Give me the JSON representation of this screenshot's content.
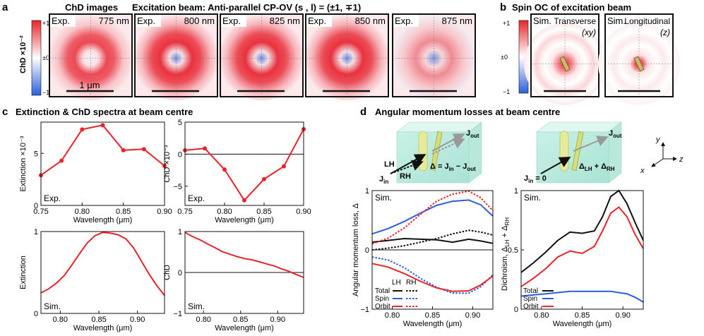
{
  "panel_a": {
    "letter": "a",
    "title_left": "ChD images",
    "title_right": "Excitation beam: Anti-parallel CP-OV (s , l) = (±1, ∓1)",
    "colorbar": {
      "label": "ChD ×10⁻²",
      "ticks": [
        "+1",
        "±0",
        "−1"
      ]
    },
    "images": [
      {
        "tag": "Exp.",
        "wavelength": "775 nm"
      },
      {
        "tag": "Exp.",
        "wavelength": "800 nm"
      },
      {
        "tag": "Exp.",
        "wavelength": "825 nm"
      },
      {
        "tag": "Exp.",
        "wavelength": "850 nm"
      },
      {
        "tag": "Exp.",
        "wavelength": "875 nm"
      }
    ],
    "scalebar_label": "1 μm"
  },
  "panel_b": {
    "letter": "b",
    "title": "Spin OC of excitation beam",
    "colorbar_ticks": [
      "+1",
      "±0",
      "−1"
    ],
    "images": [
      {
        "tag": "Sim.",
        "name": "Transverse",
        "axis": "(xy)"
      },
      {
        "tag": "Sim.",
        "name": "Longitudinal",
        "axis": "(z)"
      }
    ]
  },
  "panel_c": {
    "letter": "c",
    "title": "Extinction & ChD spectra at beam centre",
    "xlabel": "Wavelength (μm)",
    "tag_exp": "Exp.",
    "tag_sim": "Sim."
  },
  "panel_d": {
    "letter": "d",
    "title": "Angular momentum losses at beam centre",
    "diagram_left": {
      "lh": "LH",
      "rh": "RH",
      "jin": "J",
      "jin_sub": "in",
      "jout": "J",
      "jout_sub": "out",
      "eq": "Δ = J",
      "eq_sub1": "in",
      "eq_mid": " − J",
      "eq_sub2": "out"
    },
    "diagram_right": {
      "jin": "J",
      "jin_sub": "in",
      "jin_val": " = 0",
      "jout": "J",
      "jout_sub": "out",
      "eq": "Δ",
      "eq_sub1": "LH",
      "eq_mid": " + Δ",
      "eq_sub2": "RH"
    },
    "axes_labels": {
      "x": "x",
      "y": "y",
      "z": "z"
    },
    "left_ylabel": "Angular momentum loss, Δ",
    "right_ylabel": "Dichroism, Δ",
    "right_ylabel_sub1": "LH",
    "right_ylabel_mid": " + Δ",
    "right_ylabel_sub2": "RH",
    "legend_left": {
      "header_lh": "LH",
      "header_rh": "RH",
      "items": [
        "Total",
        "Spin",
        "Orbit"
      ]
    },
    "legend_right": {
      "items": [
        "Total",
        "Spin",
        "Orbit"
      ]
    },
    "xlabel": "Wavelength (μm)",
    "tag_sim": "Sim."
  },
  "colors": {
    "red": "#e8232a",
    "blue": "#2c5fdd",
    "black": "#111111"
  },
  "chart_data": [
    {
      "id": "c_ext_exp",
      "type": "line",
      "title": "",
      "xlabel": "Wavelength (μm)",
      "ylabel": "Extinction ×10⁻³",
      "xlim": [
        0.75,
        0.9
      ],
      "ylim": [
        0,
        8
      ],
      "xticks": [
        0.75,
        0.8,
        0.85,
        0.9
      ],
      "xtick_labels": [
        "0.75",
        "0.80",
        "0.85",
        "0.90"
      ],
      "yticks": [
        0,
        5
      ],
      "ytick_labels": [
        "0",
        "5"
      ],
      "series": [
        {
          "name": "Exp.",
          "color": "#e8232a",
          "markers": true,
          "x": [
            0.75,
            0.775,
            0.8,
            0.825,
            0.85,
            0.875,
            0.9
          ],
          "y": [
            2.9,
            4.3,
            7.3,
            7.7,
            5.3,
            5.4,
            3.8
          ]
        }
      ]
    },
    {
      "id": "c_chd_exp",
      "type": "line",
      "ylabel": "ChD ×10⁻³",
      "xlim": [
        0.75,
        0.9
      ],
      "ylim": [
        -8,
        5
      ],
      "zero_line": true,
      "xticks": [
        0.75,
        0.8,
        0.85,
        0.9
      ],
      "xtick_labels": [
        "0.75",
        "0.80",
        "0.85",
        "0.90"
      ],
      "yticks": [
        -5,
        0,
        5
      ],
      "ytick_labels": [
        "−5",
        "0",
        "5"
      ],
      "series": [
        {
          "name": "Exp.",
          "color": "#e8232a",
          "markers": true,
          "x": [
            0.75,
            0.775,
            0.8,
            0.825,
            0.85,
            0.875,
            0.9
          ],
          "y": [
            0.6,
            0.9,
            -2.4,
            -7.2,
            -3.9,
            -1.9,
            3.9
          ]
        }
      ]
    },
    {
      "id": "c_ext_sim",
      "type": "line",
      "ylabel": "Extinction",
      "xlim": [
        0.775,
        0.935
      ],
      "ylim": [
        0,
        1
      ],
      "xticks": [
        0.8,
        0.85,
        0.9
      ],
      "xtick_labels": [
        "0.80",
        "0.85",
        "0.90"
      ],
      "yticks": [
        0,
        1
      ],
      "ytick_labels": [
        "0",
        "1"
      ],
      "series": [
        {
          "name": "Sim.",
          "color": "#e8232a",
          "x": [
            0.775,
            0.785,
            0.795,
            0.805,
            0.815,
            0.825,
            0.835,
            0.845,
            0.855,
            0.865,
            0.875,
            0.885,
            0.895,
            0.905,
            0.915,
            0.925,
            0.935
          ],
          "y": [
            0.25,
            0.3,
            0.37,
            0.46,
            0.59,
            0.73,
            0.86,
            0.95,
            0.99,
            0.98,
            0.96,
            0.91,
            0.8,
            0.64,
            0.48,
            0.34,
            0.22
          ]
        }
      ]
    },
    {
      "id": "c_chd_sim",
      "type": "line",
      "ylabel": "ChD",
      "xlim": [
        0.775,
        0.935
      ],
      "ylim": [
        -1,
        1
      ],
      "zero_line": true,
      "xticks": [
        0.8,
        0.85,
        0.9
      ],
      "xtick_labels": [
        "0.80",
        "0.85",
        "0.90"
      ],
      "yticks": [
        -1,
        0,
        1
      ],
      "ytick_labels": [
        "−1",
        "0",
        "1"
      ],
      "series": [
        {
          "name": "Sim.",
          "color": "#e8232a",
          "x": [
            0.775,
            0.785,
            0.795,
            0.805,
            0.815,
            0.825,
            0.835,
            0.845,
            0.855,
            0.865,
            0.875,
            0.885,
            0.895,
            0.905,
            0.915,
            0.925,
            0.935
          ],
          "y": [
            0.98,
            0.88,
            0.8,
            0.7,
            0.61,
            0.51,
            0.45,
            0.39,
            0.34,
            0.31,
            0.26,
            0.21,
            0.16,
            0.09,
            0.03,
            -0.05,
            -0.12
          ]
        }
      ]
    },
    {
      "id": "d_loss",
      "type": "line",
      "ylabel": "Angular momentum loss, Δ",
      "xlim": [
        0.775,
        0.925
      ],
      "ylim": [
        -1,
        1
      ],
      "zero_line": true,
      "xticks": [
        0.8,
        0.85,
        0.9
      ],
      "xtick_labels": [
        "0.80",
        "0.85",
        "0.90"
      ],
      "yticks": [
        -1,
        0,
        1
      ],
      "ytick_labels": [
        "−1",
        "0",
        "1"
      ],
      "series": [
        {
          "name": "Total LH",
          "color": "#111111",
          "dash": false,
          "x": [
            0.775,
            0.795,
            0.815,
            0.835,
            0.855,
            0.875,
            0.895,
            0.91,
            0.925
          ],
          "y": [
            0.13,
            0.16,
            0.19,
            0.18,
            0.17,
            0.13,
            0.18,
            0.15,
            0.11
          ]
        },
        {
          "name": "Total RH",
          "color": "#111111",
          "dash": true,
          "x": [
            0.775,
            0.795,
            0.815,
            0.835,
            0.855,
            0.875,
            0.895,
            0.91,
            0.925
          ],
          "y": [
            0.0,
            0.03,
            0.07,
            0.13,
            0.19,
            0.27,
            0.33,
            0.3,
            0.25
          ]
        },
        {
          "name": "Spin LH",
          "color": "#2c5fdd",
          "dash": false,
          "x": [
            0.775,
            0.795,
            0.815,
            0.835,
            0.855,
            0.875,
            0.895,
            0.91,
            0.925
          ],
          "y": [
            0.27,
            0.36,
            0.48,
            0.62,
            0.75,
            0.82,
            0.84,
            0.76,
            0.57
          ]
        },
        {
          "name": "Spin RH",
          "color": "#2c5fdd",
          "dash": true,
          "x": [
            0.775,
            0.795,
            0.815,
            0.835,
            0.855,
            0.875,
            0.895,
            0.91,
            0.925
          ],
          "y": [
            -0.12,
            -0.17,
            -0.3,
            -0.48,
            -0.63,
            -0.73,
            -0.73,
            -0.62,
            -0.42
          ]
        },
        {
          "name": "Orbit LH",
          "color": "#e8232a",
          "dash": false,
          "x": [
            0.775,
            0.795,
            0.815,
            0.835,
            0.855,
            0.875,
            0.895,
            0.91,
            0.925
          ],
          "y": [
            -0.23,
            -0.29,
            -0.4,
            -0.53,
            -0.64,
            -0.7,
            -0.69,
            -0.59,
            -0.44
          ]
        },
        {
          "name": "Orbit RH",
          "color": "#e8232a",
          "dash": true,
          "x": [
            0.775,
            0.795,
            0.815,
            0.835,
            0.855,
            0.875,
            0.895,
            0.91,
            0.925
          ],
          "y": [
            0.1,
            0.2,
            0.37,
            0.6,
            0.82,
            0.94,
            0.99,
            0.88,
            0.66
          ]
        }
      ]
    },
    {
      "id": "d_dichroism",
      "type": "line",
      "ylabel": "Dichroism, ΔLH + ΔRH",
      "xlim": [
        0.775,
        0.925
      ],
      "ylim": [
        0,
        1
      ],
      "xticks": [
        0.8,
        0.85,
        0.9
      ],
      "xtick_labels": [
        "0.80",
        "0.85",
        "0.90"
      ],
      "yticks": [
        0,
        0.5,
        1
      ],
      "ytick_labels": [
        "0",
        "0.5",
        "1"
      ],
      "series": [
        {
          "name": "Total",
          "color": "#111111",
          "x": [
            0.775,
            0.79,
            0.805,
            0.82,
            0.835,
            0.85,
            0.865,
            0.875,
            0.885,
            0.895,
            0.905,
            0.915,
            0.925
          ],
          "y": [
            0.31,
            0.39,
            0.48,
            0.58,
            0.65,
            0.64,
            0.66,
            0.78,
            0.95,
            1.0,
            0.89,
            0.73,
            0.58
          ]
        },
        {
          "name": "Spin",
          "color": "#2c5fdd",
          "x": [
            0.775,
            0.79,
            0.805,
            0.82,
            0.835,
            0.85,
            0.865,
            0.875,
            0.885,
            0.895,
            0.905,
            0.915,
            0.925
          ],
          "y": [
            0.11,
            0.12,
            0.13,
            0.14,
            0.15,
            0.15,
            0.15,
            0.15,
            0.15,
            0.14,
            0.13,
            0.1,
            0.06
          ]
        },
        {
          "name": "Orbit",
          "color": "#e8232a",
          "x": [
            0.775,
            0.79,
            0.805,
            0.82,
            0.835,
            0.85,
            0.865,
            0.875,
            0.885,
            0.895,
            0.905,
            0.915,
            0.925
          ],
          "y": [
            0.19,
            0.26,
            0.34,
            0.44,
            0.49,
            0.47,
            0.53,
            0.66,
            0.81,
            0.86,
            0.78,
            0.63,
            0.51
          ]
        }
      ]
    }
  ]
}
